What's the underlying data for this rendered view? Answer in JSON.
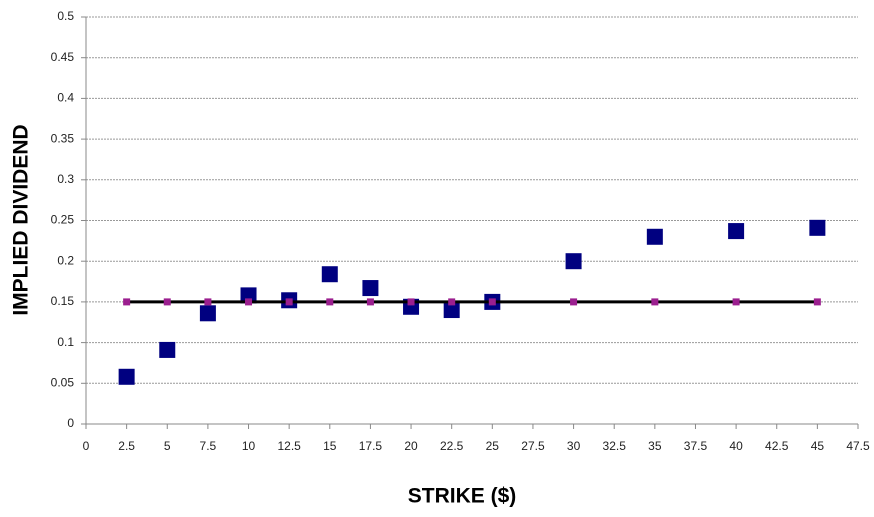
{
  "chart_data": {
    "type": "scatter",
    "xlabel": "STRIKE ($)",
    "ylabel": "IMPLIED DIVIDEND",
    "x": [
      2.5,
      5,
      7.5,
      10,
      12.5,
      15,
      17.5,
      20,
      22.5,
      25,
      30,
      35,
      40,
      45
    ],
    "series": [
      {
        "color": "#000080",
        "marker_size": 15,
        "line": false,
        "values": [
          0.058,
          0.091,
          0.136,
          0.158,
          0.152,
          0.184,
          0.167,
          0.144,
          0.14,
          0.15,
          0.2,
          0.23,
          0.237,
          0.241
        ]
      },
      {
        "color": "#9b1f8f",
        "marker_size": 6,
        "line": true,
        "line_color": "#000000",
        "values": [
          0.15,
          0.15,
          0.15,
          0.15,
          0.15,
          0.15,
          0.15,
          0.15,
          0.15,
          0.15,
          0.15,
          0.15,
          0.15,
          0.15
        ]
      }
    ],
    "xlim": [
      0,
      47.5
    ],
    "xticks": [
      0,
      2.5,
      5,
      7.5,
      10,
      12.5,
      15,
      17.5,
      20,
      22.5,
      25,
      27.5,
      30,
      32.5,
      35,
      37.5,
      40,
      42.5,
      45,
      47.5
    ],
    "ylim": [
      0,
      0.5
    ],
    "yticks": [
      0,
      0.05,
      0.1,
      0.15,
      0.2,
      0.25,
      0.3,
      0.35,
      0.4,
      0.45,
      0.5
    ],
    "grid": true
  }
}
